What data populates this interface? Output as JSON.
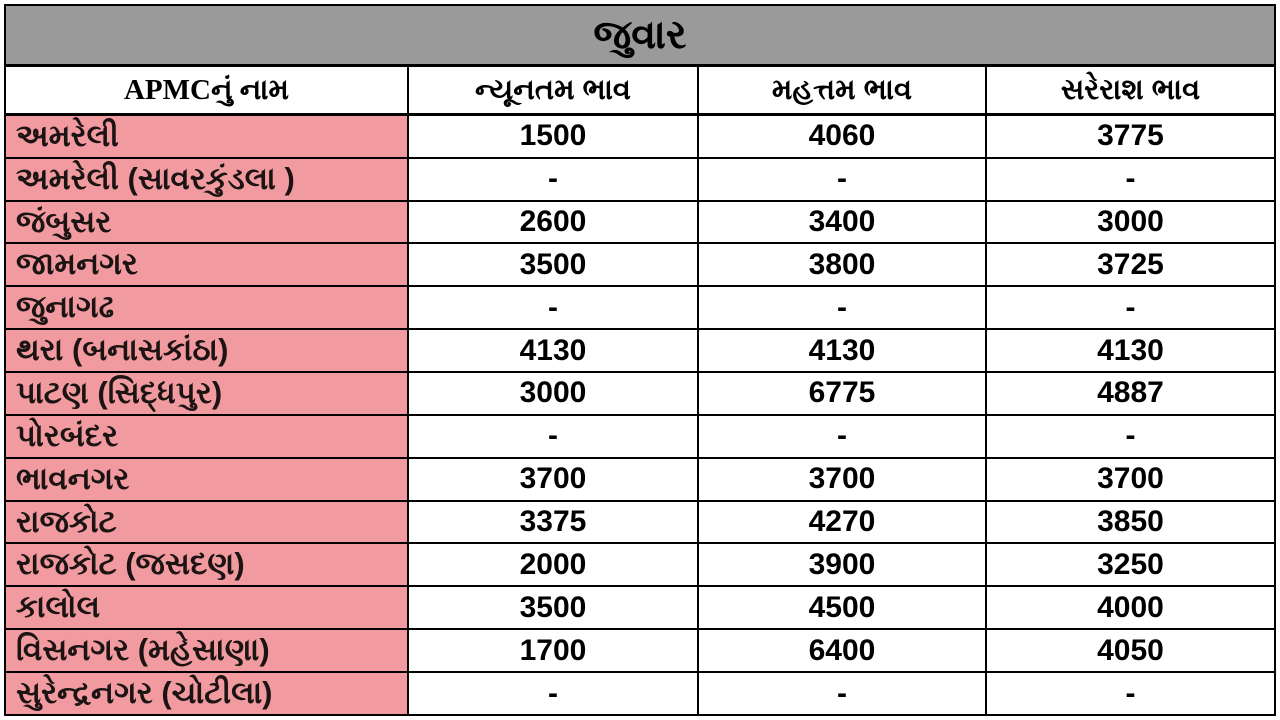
{
  "title": "જુવાર",
  "colors": {
    "title_bg": "#9a9a9a",
    "name_bg": "#f19ba1",
    "border": "#000000",
    "text": "#000000"
  },
  "chart_data": {
    "type": "table",
    "title": "જુવાર",
    "columns": [
      "APMCનું નામ",
      "ન્યૂનતમ ભાવ",
      "મહત્તમ ભાવ",
      "સરેરાશ ભાવ"
    ],
    "rows": [
      [
        "અમરેલી",
        "1500",
        "4060",
        "3775"
      ],
      [
        "અમરેલી (સાવરકુંડલા )",
        "-",
        "-",
        "-"
      ],
      [
        "જંબુસર",
        "2600",
        "3400",
        "3000"
      ],
      [
        "જામનગર",
        "3500",
        "3800",
        "3725"
      ],
      [
        "જુનાગઢ",
        "-",
        "-",
        "-"
      ],
      [
        "થરા (બનાસકાંઠા)",
        "4130",
        "4130",
        "4130"
      ],
      [
        "પાટણ (સિદ્ધપુર)",
        "3000",
        "6775",
        "4887"
      ],
      [
        "પોરબંદર",
        "-",
        "-",
        "-"
      ],
      [
        "ભાવનગર",
        "3700",
        "3700",
        "3700"
      ],
      [
        "રાજકોટ",
        "3375",
        "4270",
        "3850"
      ],
      [
        "રાજકોટ (જસદણ)",
        "2000",
        "3900",
        "3250"
      ],
      [
        "કાલોલ",
        "3500",
        "4500",
        "4000"
      ],
      [
        "વિસનગર (મહેસાણા)",
        "1700",
        "6400",
        "4050"
      ],
      [
        "સુરેન્દ્રનગર (ચોટીલા)",
        "-",
        "-",
        "-"
      ]
    ]
  }
}
